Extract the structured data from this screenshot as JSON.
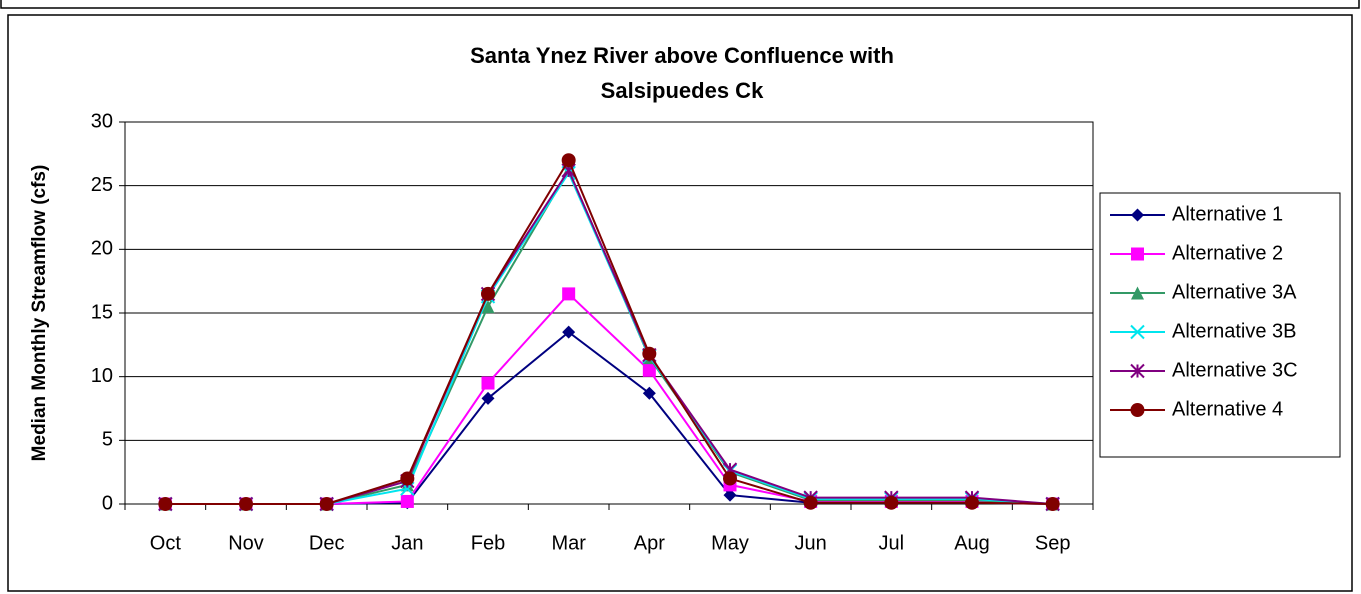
{
  "chart_data": {
    "type": "line",
    "title": [
      "Santa Ynez River above Confluence with",
      "Salsipuedes Ck"
    ],
    "y_label": "Median Monthly Streamflow (cfs)",
    "categories": [
      "Oct",
      "Nov",
      "Dec",
      "Jan",
      "Feb",
      "Mar",
      "Apr",
      "May",
      "Jun",
      "Jul",
      "Aug",
      "Sep"
    ],
    "series": [
      {
        "name": "Alternative 1",
        "color": "#000080",
        "marker": "diamond",
        "values": [
          0,
          0,
          0,
          0.1,
          8.3,
          13.5,
          8.7,
          0.7,
          0.1,
          0.1,
          0.1,
          0
        ]
      },
      {
        "name": "Alternative 2",
        "color": "#ff00ff",
        "marker": "square",
        "values": [
          0,
          0,
          0,
          0.2,
          9.5,
          16.5,
          10.5,
          1.5,
          0.2,
          0.2,
          0.2,
          0
        ]
      },
      {
        "name": "Alternative 3A",
        "color": "#339966",
        "marker": "triangle",
        "values": [
          0,
          0,
          0,
          1.5,
          15.5,
          26.2,
          11.5,
          2.5,
          0.3,
          0.3,
          0.3,
          0
        ]
      },
      {
        "name": "Alternative 3B",
        "color": "#00e5ee",
        "marker": "x",
        "values": [
          0,
          0,
          0,
          1.2,
          16.3,
          26,
          11.6,
          2.6,
          0.4,
          0.4,
          0.4,
          0
        ]
      },
      {
        "name": "Alternative 3C",
        "color": "#800080",
        "marker": "star",
        "values": [
          0,
          0,
          0,
          1.8,
          16.5,
          26.2,
          11.7,
          2.7,
          0.5,
          0.5,
          0.5,
          0
        ]
      },
      {
        "name": "Alternative 4",
        "color": "#800000",
        "marker": "circle",
        "values": [
          0,
          0,
          0,
          2,
          16.5,
          27,
          11.8,
          2,
          0.1,
          0.1,
          0.1,
          0
        ]
      }
    ],
    "ylim": [
      0,
      30
    ],
    "yticks": [
      0,
      5,
      10,
      15,
      20,
      25,
      30
    ],
    "grid": true,
    "legend": "right"
  }
}
